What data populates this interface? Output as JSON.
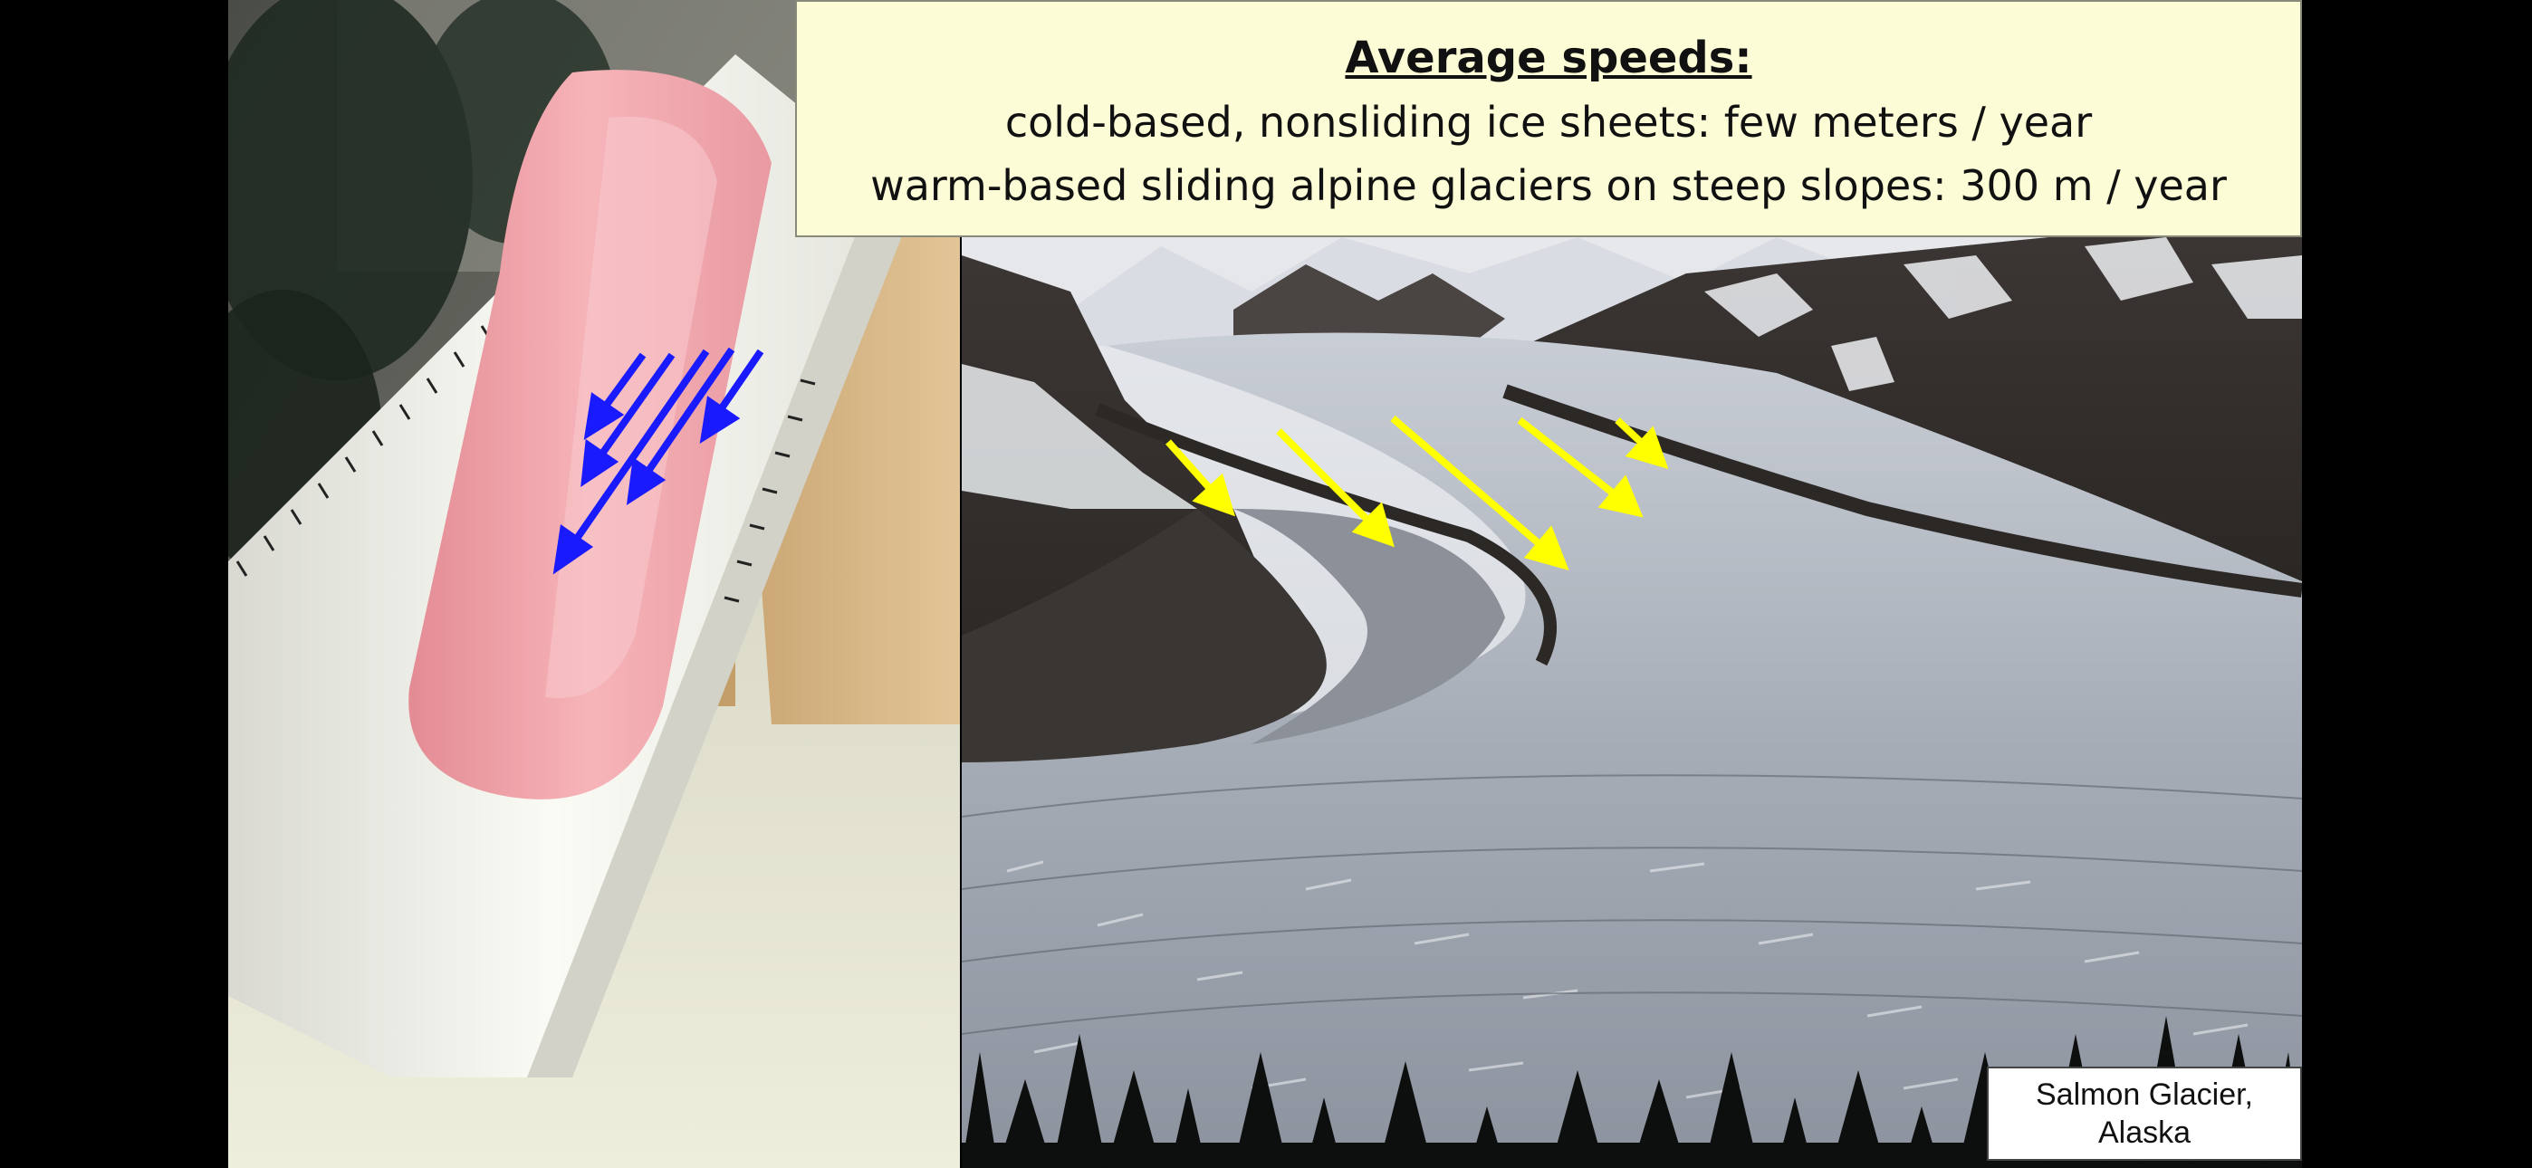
{
  "slide": {
    "title": "Average speeds:",
    "line1": "cold-based, nonsliding ice sheets: few meters / year",
    "line2": "warm-based sliding alpine glaciers on steep slopes: 300 m / year"
  },
  "caption": {
    "line1": "Salmon Glacier,",
    "line2": "Alaska"
  },
  "colors": {
    "background": "#000000",
    "title_box": "#fcfcd7",
    "demo_arrows": "#1a1aff",
    "glacier_arrows": "#ffff00",
    "putty": "#f2a0a6",
    "trough": "#f4f4f0"
  },
  "images": {
    "left": "silicone-putty-flow-demo-in-pvc-trough",
    "right": "salmon-glacier-aerial-photo"
  }
}
